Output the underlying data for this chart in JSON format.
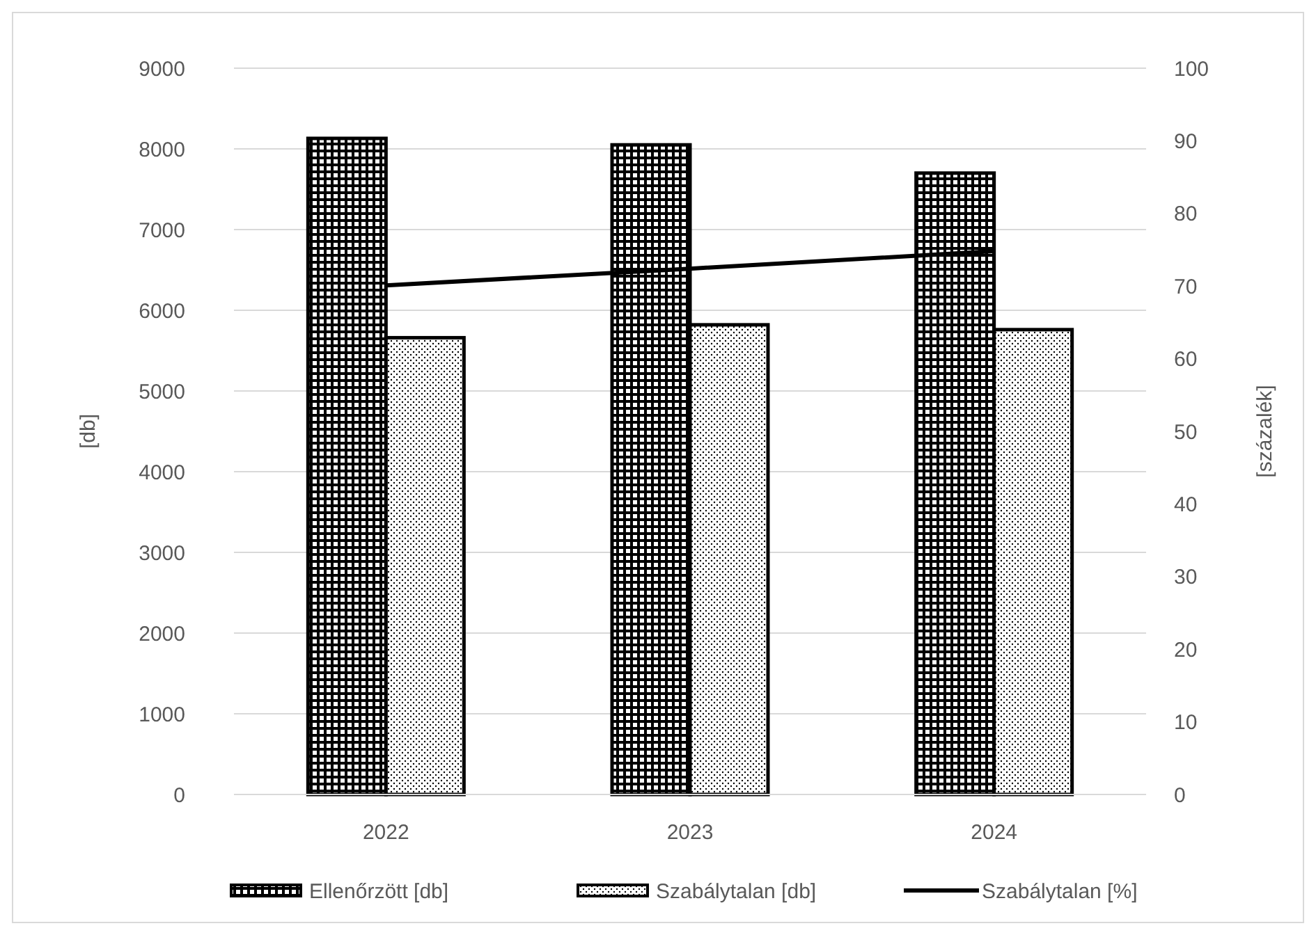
{
  "chart_data": {
    "type": "bar",
    "categories": [
      "2022",
      "2023",
      "2024"
    ],
    "series": [
      {
        "name": "Ellenőrzött [db]",
        "color": "#000000",
        "values": [
          8130,
          8050,
          7700
        ]
      },
      {
        "name": "Szabálytalan [db]",
        "color": "#000000",
        "values": [
          5660,
          5820,
          5760
        ]
      },
      {
        "name": "Szabálytalan [%]",
        "type": "line",
        "axis": "y2",
        "color": "#000000",
        "values": [
          70.1,
          72.4,
          74.8
        ]
      }
    ],
    "ylabel": "[db]",
    "y2label": "[százalék]",
    "ylim": [
      0,
      9000
    ],
    "yticks": [
      0,
      1000,
      2000,
      3000,
      4000,
      5000,
      6000,
      7000,
      8000,
      9000
    ],
    "y2lim": [
      0,
      100
    ],
    "y2ticks": [
      0,
      10,
      20,
      30,
      40,
      50,
      60,
      70,
      80,
      90,
      100
    ],
    "grid": "y",
    "legend": "bottom"
  }
}
